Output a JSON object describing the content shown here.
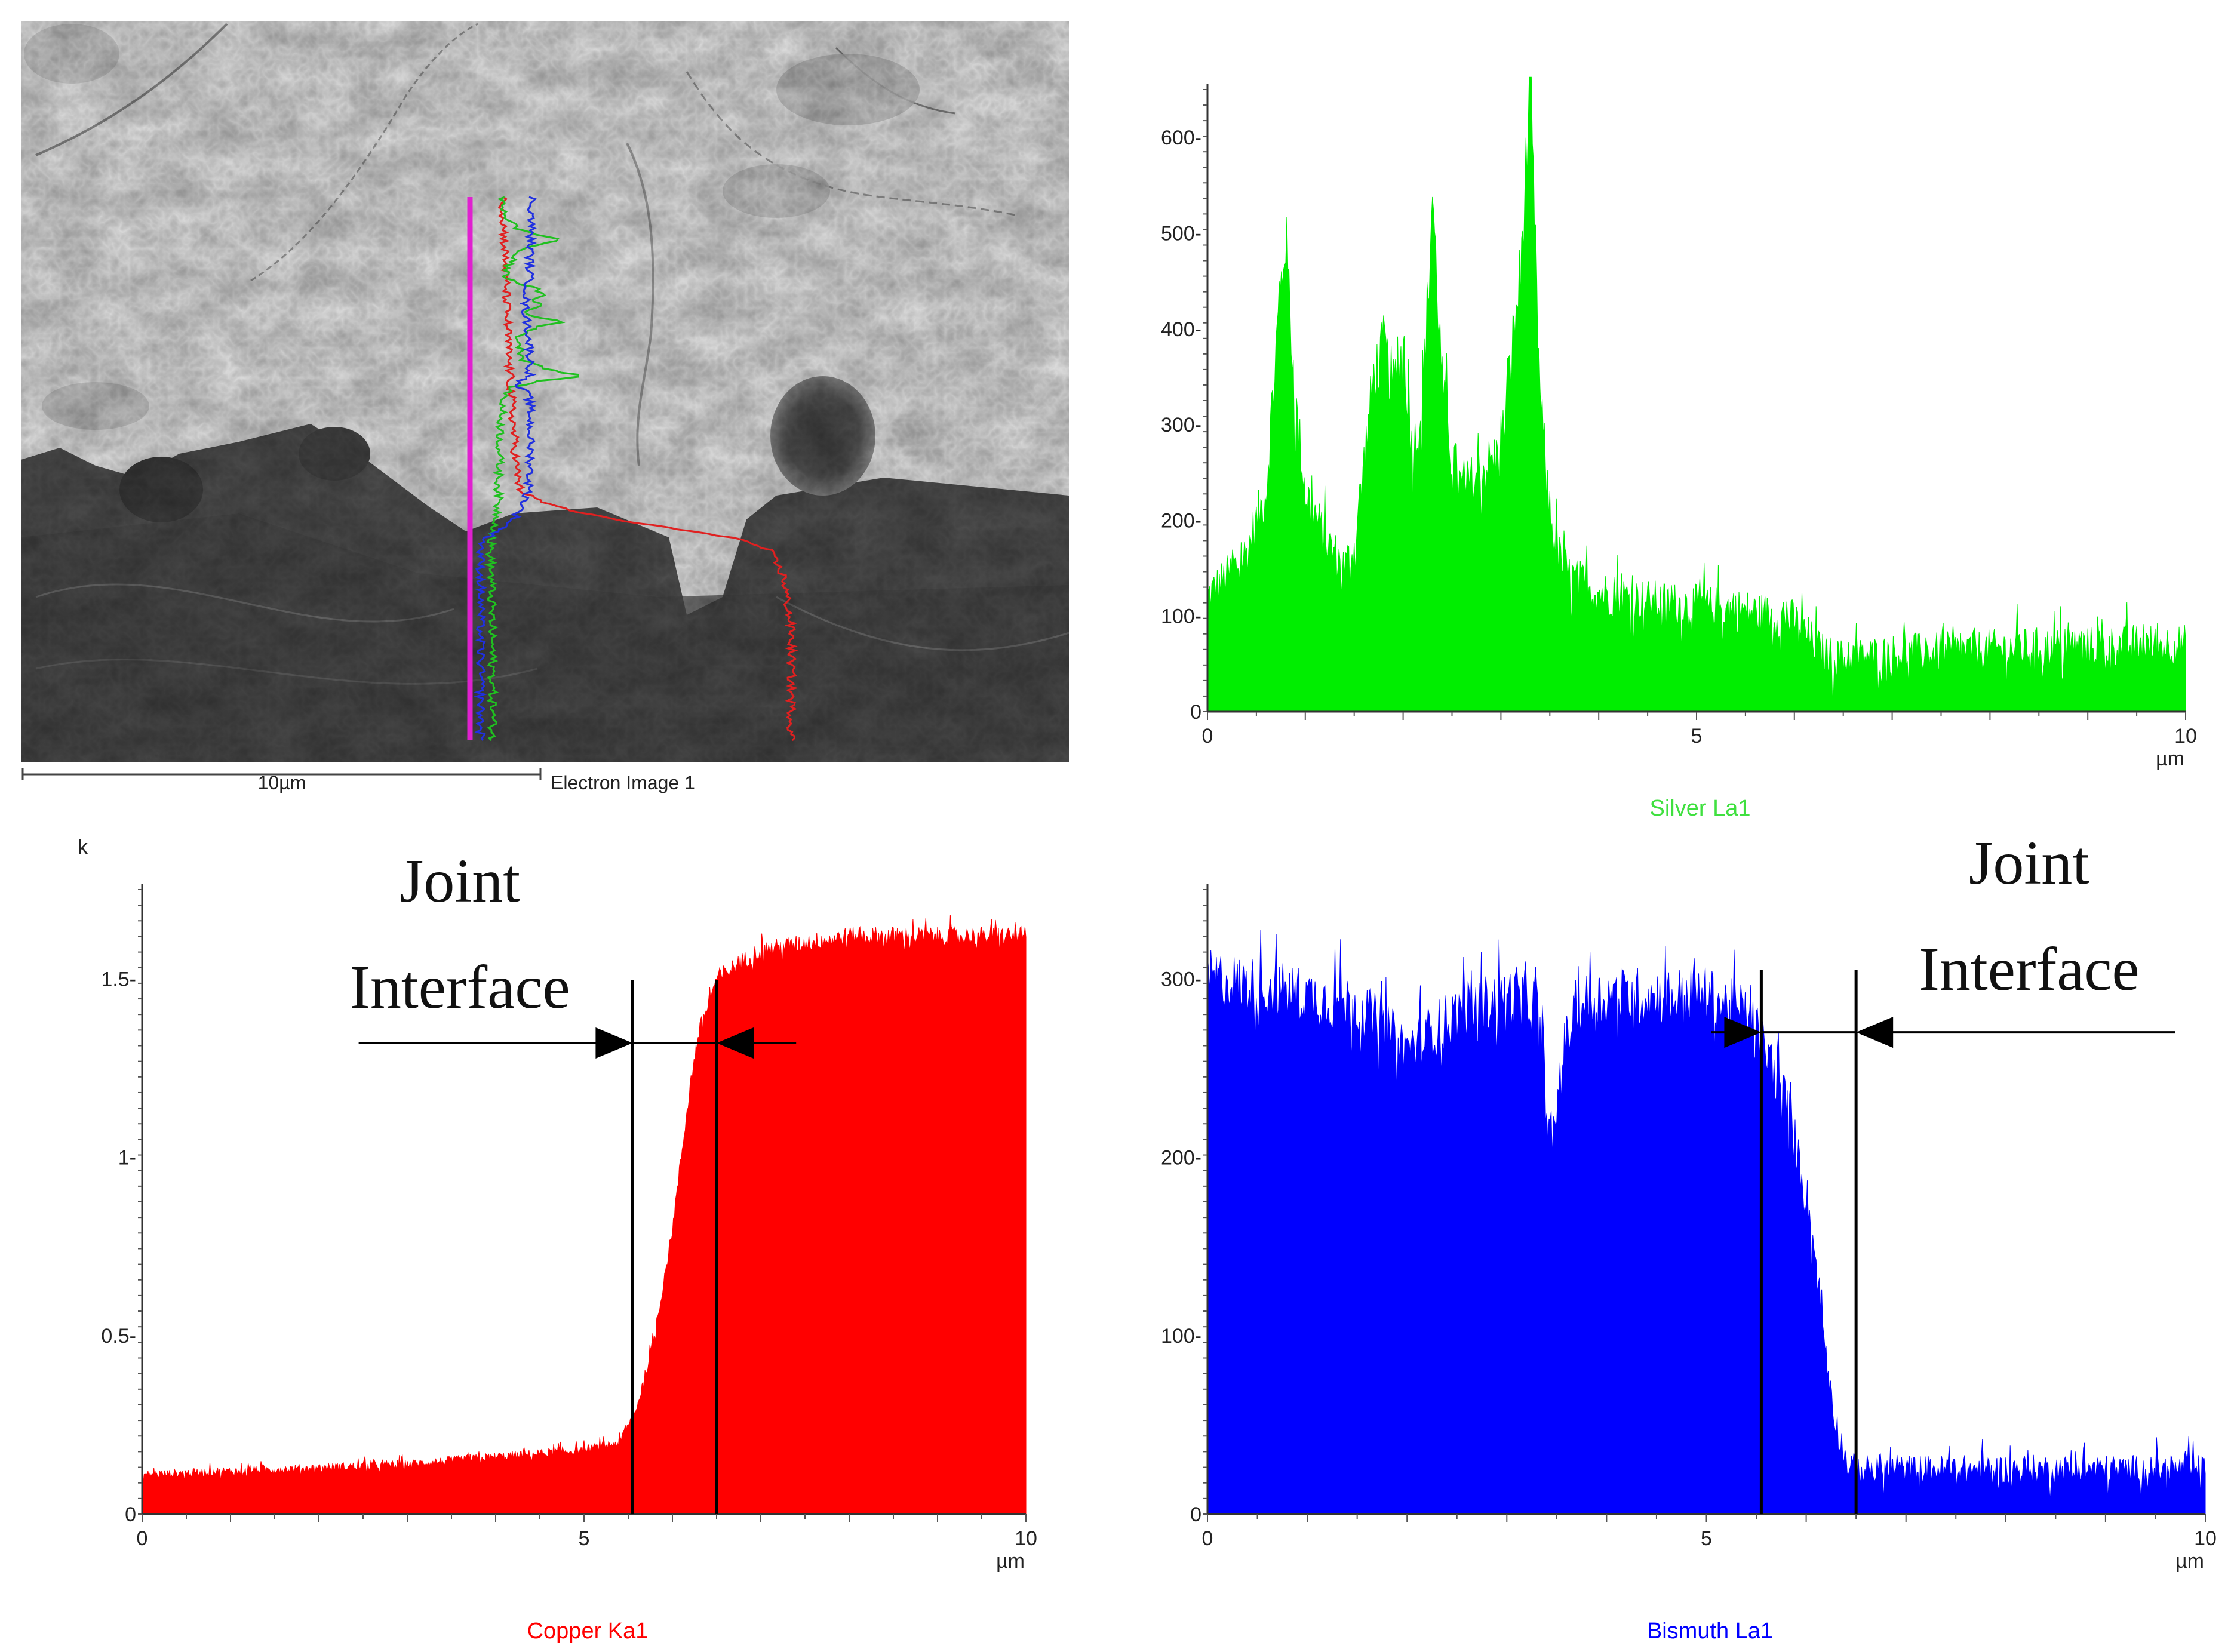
{
  "micrograph": {
    "caption": "Electron Image 1",
    "scale_bar_label": "10µm",
    "trace_colors": {
      "marker": "#e020d0",
      "copper": "#e02020",
      "silver": "#20c020",
      "bismuth": "#2030e0"
    }
  },
  "chart_data": [
    {
      "type": "area",
      "name": "Silver La1",
      "title": "Silver La1",
      "color": "#00ee00",
      "xlabel": "µm",
      "ylabel": "",
      "xlim": [
        0,
        10
      ],
      "ylim": [
        0,
        650
      ],
      "xticks": [
        0,
        5,
        10
      ],
      "yticks": [
        0,
        100,
        200,
        300,
        400,
        500,
        600
      ],
      "ytick_labels": [
        "0",
        "100-",
        "200-",
        "300-",
        "400-",
        "500-",
        "600-"
      ],
      "x": [
        0,
        0.2,
        0.4,
        0.6,
        0.7,
        0.8,
        0.9,
        1.0,
        1.2,
        1.4,
        1.5,
        1.6,
        1.7,
        1.8,
        1.9,
        2.0,
        2.1,
        2.2,
        2.3,
        2.4,
        2.5,
        2.6,
        2.7,
        2.8,
        3.0,
        3.2,
        3.3,
        3.4,
        3.5,
        3.6,
        3.7,
        3.8,
        4.0,
        4.5,
        5.0,
        5.5,
        6.0,
        6.3,
        6.5,
        7.0,
        7.5,
        8.0,
        8.5,
        9.0,
        9.5,
        10.0
      ],
      "y": [
        120,
        140,
        165,
        230,
        380,
        500,
        320,
        230,
        180,
        150,
        170,
        260,
        350,
        380,
        340,
        380,
        270,
        320,
        540,
        340,
        270,
        230,
        240,
        250,
        270,
        460,
        650,
        330,
        200,
        160,
        140,
        135,
        125,
        115,
        110,
        105,
        95,
        60,
        55,
        60,
        62,
        65,
        67,
        68,
        70,
        70
      ],
      "noise": 0.16
    },
    {
      "type": "area",
      "name": "Copper Ka1",
      "title": "Copper Ka1",
      "color": "#ff0000",
      "xlabel": "µm",
      "ylabel": "k",
      "xlim": [
        0,
        10
      ],
      "ylim": [
        0,
        1.75
      ],
      "xticks": [
        0,
        5,
        10
      ],
      "yticks": [
        0,
        0.5,
        1,
        1.5
      ],
      "ytick_labels": [
        "0",
        "0.5-",
        "1-",
        "1.5-"
      ],
      "x": [
        0,
        1,
        2,
        3,
        4,
        5,
        5.4,
        5.6,
        5.8,
        6.0,
        6.1,
        6.2,
        6.3,
        6.5,
        6.8,
        7.0,
        7.5,
        8.0,
        9.0,
        10.0
      ],
      "y": [
        0.11,
        0.12,
        0.13,
        0.14,
        0.16,
        0.18,
        0.2,
        0.3,
        0.5,
        0.8,
        1.0,
        1.2,
        1.35,
        1.5,
        1.55,
        1.58,
        1.6,
        1.62,
        1.62,
        1.62
      ],
      "noise": 0.035,
      "annotation": {
        "text_lines": [
          "Joint",
          "Interface"
        ],
        "interface_start": 5.55,
        "interface_end": 6.5,
        "arrow_from_left": 2.45,
        "arrow_from_right": 7.4,
        "arrow_level": 1.32
      }
    },
    {
      "type": "area",
      "name": "Bismuth La1",
      "title": "Bismuth La1",
      "color": "#0000ff",
      "xlabel": "µm",
      "ylabel": "",
      "xlim": [
        0,
        10
      ],
      "ylim": [
        0,
        350
      ],
      "xticks": [
        0,
        5,
        10
      ],
      "yticks": [
        0,
        100,
        200,
        300
      ],
      "ytick_labels": [
        "0",
        "100-",
        "200-",
        "300-"
      ],
      "x": [
        0,
        0.5,
        1.0,
        1.5,
        2.0,
        2.5,
        3.0,
        3.3,
        3.45,
        3.55,
        3.7,
        4.0,
        4.5,
        5.0,
        5.4,
        5.6,
        5.8,
        6.0,
        6.1,
        6.2,
        6.3,
        6.4,
        6.5,
        7.0,
        8.0,
        9.0,
        10.0
      ],
      "y": [
        300,
        295,
        290,
        285,
        260,
        280,
        290,
        285,
        200,
        255,
        285,
        290,
        290,
        290,
        280,
        260,
        230,
        180,
        140,
        90,
        50,
        30,
        25,
        25,
        25,
        25,
        25
      ],
      "noise": 0.12,
      "annotation": {
        "text_lines": [
          "Joint",
          "Interface"
        ],
        "interface_start": 5.55,
        "interface_end": 6.5,
        "arrow_from_left": 5.05,
        "arrow_from_right": 9.7,
        "arrow_level": 270
      }
    }
  ]
}
